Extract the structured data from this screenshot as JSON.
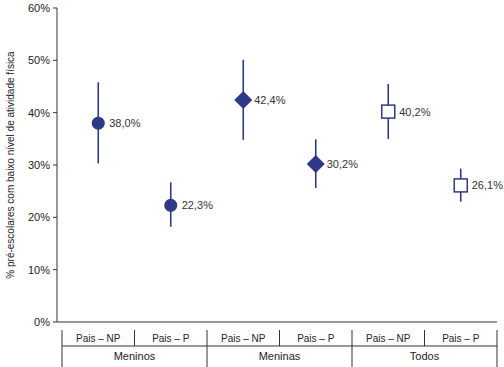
{
  "chart_data": {
    "type": "dot",
    "y_label": "% pré-escolares com baixo nível de atividade física",
    "categories": [
      "Pais – NP",
      "Pais – P"
    ],
    "ylim": [
      0,
      60
    ],
    "yticks": [
      {
        "value": 0,
        "label": "0%"
      },
      {
        "value": 10,
        "label": "10%"
      },
      {
        "value": 20,
        "label": "20%"
      },
      {
        "value": 30,
        "label": "30%"
      },
      {
        "value": 40,
        "label": "40%"
      },
      {
        "value": 50,
        "label": "50%"
      },
      {
        "value": 60,
        "label": "60%"
      }
    ],
    "data_labels": true,
    "series": [
      {
        "name": "Meninos",
        "color": "#2e3a87",
        "marker": "circle",
        "values": [
          38.0,
          22.3
        ],
        "value_labels": [
          "38,0%",
          "22,3%"
        ],
        "lower": [
          30.3,
          18.2
        ],
        "upper": [
          45.8,
          26.7
        ]
      },
      {
        "name": "Meninas",
        "color": "#2e3a87",
        "marker": "diamond",
        "values": [
          42.4,
          30.2
        ],
        "value_labels": [
          "42,4%",
          "30,2%"
        ],
        "lower": [
          34.8,
          25.6
        ],
        "upper": [
          50.1,
          34.9
        ]
      },
      {
        "name": "Todos",
        "color": "#2e3a87",
        "marker": "open-square",
        "values": [
          40.2,
          26.1
        ],
        "value_labels": [
          "40,2%",
          "26,1%"
        ],
        "lower": [
          35.0,
          23.0
        ],
        "upper": [
          45.5,
          29.3
        ]
      }
    ]
  }
}
